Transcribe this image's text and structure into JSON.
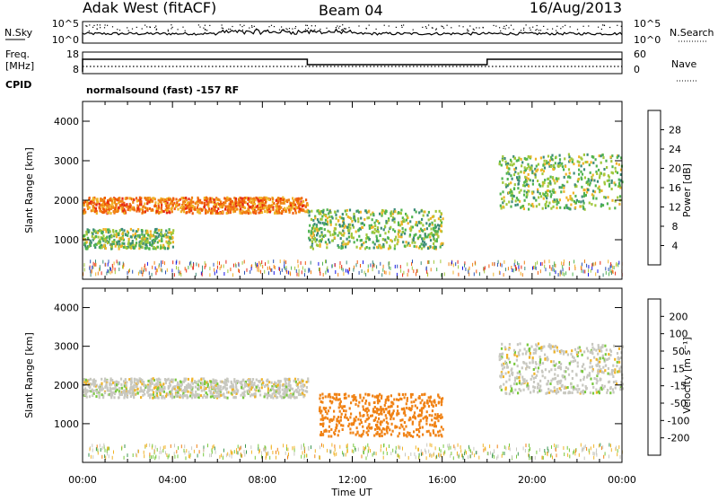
{
  "header": {
    "station": "Adak West (fitACF)",
    "beam": "Beam 04",
    "date": "16/Aug/2013"
  },
  "noise_panel": {
    "left_label": "N.Sky",
    "right_label": "N.Search",
    "left_ticks": [
      "10^5",
      "10^0"
    ],
    "right_ticks": [
      "10^5",
      "10^0"
    ]
  },
  "freq_panel": {
    "left_label_1": "Freq.",
    "left_label_2": "[MHz]",
    "left_ticks": [
      "18",
      "8"
    ],
    "right_label": "Nave",
    "right_ticks": [
      "60",
      "0"
    ],
    "cpid_label": "CPID",
    "cpid_text": "normalsound (fast) -157 RF"
  },
  "colors": {
    "power_scale": [
      "#1414e6",
      "#2850b4",
      "#3c8c78",
      "#50b450",
      "#a0c83c",
      "#f0b428",
      "#f08214",
      "#f05a0a",
      "#e62814"
    ],
    "velocity_scale": [
      "#1e1eb4",
      "#3c64c8",
      "#3c9650",
      "#78c83c",
      "#c8c8c0",
      "#f0b428",
      "#f08214",
      "#f05a0a",
      "#e61e0a"
    ]
  },
  "chart_data": [
    {
      "type": "heatmap",
      "name": "power",
      "ylabel": "Slant Range [km]",
      "yticks": [
        "1000",
        "2000",
        "3000",
        "4000"
      ],
      "ylim": [
        0,
        4500
      ],
      "xlim": [
        0,
        24
      ],
      "colorbar": {
        "label": "Power [dB]",
        "ticks": [
          "4",
          "8",
          "12",
          "16",
          "20",
          "24",
          "28"
        ],
        "range": [
          0,
          32
        ]
      },
      "features": [
        {
          "t0": 0,
          "t1": 10,
          "r0": 1700,
          "r1": 2100,
          "value": 24
        },
        {
          "t0": 0,
          "t1": 4,
          "r0": 800,
          "r1": 1300,
          "value": 14
        },
        {
          "t0": 10,
          "t1": 16,
          "r0": 800,
          "r1": 1800,
          "value": 14
        },
        {
          "t0": 18.5,
          "t1": 24,
          "r0": 1800,
          "r1": 3200,
          "value": 14
        }
      ]
    },
    {
      "type": "heatmap",
      "name": "velocity",
      "ylabel": "Slant Range [km]",
      "yticks": [
        "1000",
        "2000",
        "3000",
        "4000"
      ],
      "ylim": [
        0,
        4500
      ],
      "xlim": [
        0,
        24
      ],
      "xlabel": "Time UT",
      "xticks": [
        "00:00",
        "04:00",
        "08:00",
        "12:00",
        "16:00",
        "20:00",
        "00:00"
      ],
      "colorbar": {
        "label": "Velocity [m s⁻¹]",
        "ticks": [
          "200",
          "100",
          "50",
          "15",
          "-15",
          "-50",
          "-100",
          "-200"
        ],
        "range": [
          -250,
          250
        ]
      },
      "features": [
        {
          "t0": 0,
          "t1": 10,
          "r0": 1700,
          "r1": 2200,
          "value": 0
        },
        {
          "t0": 10.5,
          "t1": 16,
          "r0": 700,
          "r1": 1800,
          "value": -70
        },
        {
          "t0": 18.5,
          "t1": 24,
          "r0": 1800,
          "r1": 3100,
          "value": 0
        }
      ]
    }
  ]
}
